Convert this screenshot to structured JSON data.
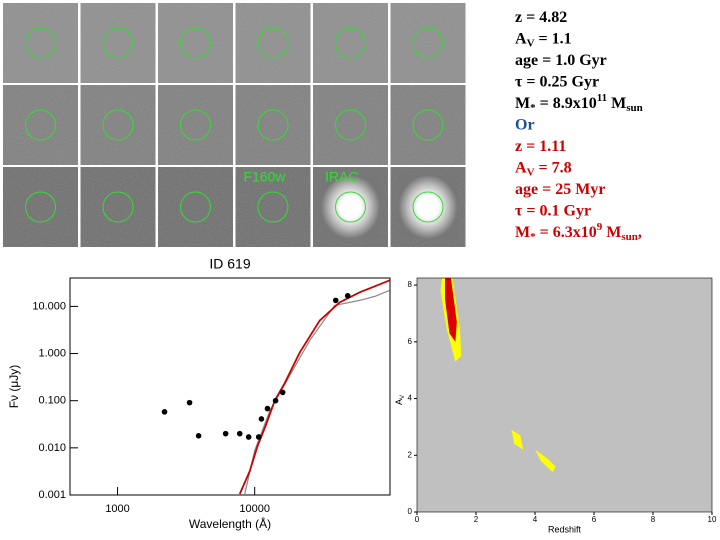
{
  "stamp_labels": [
    "F160w",
    "IRAC"
  ],
  "solutions": [
    {
      "color": "#000000",
      "lines": [
        [
          {
            "text": "z      = 4.82"
          }
        ],
        [
          {
            "text": "A"
          },
          {
            "sub": "V"
          },
          {
            "text": "  = 1.1"
          }
        ],
        [
          {
            "text": "age   = 1.0 Gyr"
          }
        ],
        [
          {
            "text": "τ       = 0.25 Gyr"
          }
        ],
        [
          {
            "text": "M"
          },
          {
            "sub": "*"
          },
          {
            "text": " = 8.9x10"
          },
          {
            "sup": "11"
          },
          {
            "text": " M"
          },
          {
            "sub": "sun"
          }
        ]
      ]
    },
    {
      "color": "#1f4e9c",
      "lines": [
        [
          {
            "text": "Or"
          }
        ]
      ]
    },
    {
      "color": "#cc0000",
      "lines": [
        [
          {
            "text": "z       = 1.11"
          }
        ],
        [
          {
            "text": "A"
          },
          {
            "sub": "V"
          },
          {
            "text": "   = 7.8"
          }
        ],
        [
          {
            "text": "age    = 25 Myr"
          }
        ],
        [
          {
            "text": "τ       = 0.1 Gyr"
          }
        ],
        [
          {
            "text": "M"
          },
          {
            "sub": "*"
          },
          {
            "text": " = 6.3x10"
          },
          {
            "sup": "9"
          },
          {
            "text": " M"
          },
          {
            "sub": "sun"
          },
          {
            "text": ","
          }
        ]
      ]
    }
  ],
  "chart_data": [
    {
      "type": "sed",
      "title": "ID 619",
      "xlabel": "Wavelength (Å)",
      "ylabel": "Fν (μJy)",
      "xscale": "log",
      "yscale": "log",
      "xlim": [
        450,
        97000
      ],
      "ylim": [
        0.001,
        40
      ],
      "xticks": [
        1000,
        10000
      ],
      "yticks": [
        {
          "value": 10,
          "label": "10.000"
        },
        {
          "value": 1,
          "label": "1.000"
        },
        {
          "value": 0.1,
          "label": "0.100"
        },
        {
          "value": 0.01,
          "label": "0.010"
        },
        {
          "value": 0.001,
          "label": "0.001"
        }
      ],
      "points": {
        "color": "#000000",
        "x": [
          2200,
          3350,
          3900,
          6140,
          7780,
          9040,
          10700,
          11200,
          12400,
          14200,
          16000,
          39000,
          47700
        ],
        "values": [
          0.058,
          0.091,
          0.018,
          0.02,
          0.02,
          0.017,
          0.017,
          0.041,
          0.068,
          0.1,
          0.15,
          13.4,
          16.8
        ]
      },
      "series": [
        {
          "color": "#888888",
          "x": [
            8460,
            10000,
            12900,
            18000,
            25200,
            38300,
            58300,
            75200,
            96600
          ],
          "values": [
            0.00105,
            0.0087,
            0.061,
            0.34,
            1.9,
            10.5,
            13.4,
            16.3,
            21.9
          ]
        },
        {
          "color": "#cc0000",
          "x": [
            7780,
            9200,
            10500,
            12000,
            14000,
            16600,
            21300,
            29800,
            41700,
            58300,
            96600
          ],
          "values": [
            0.00105,
            0.0032,
            0.011,
            0.029,
            0.1,
            0.24,
            1.05,
            5.0,
            12.2,
            19.9,
            35.7
          ]
        }
      ]
    },
    {
      "type": "contour",
      "xlabel": "Redshift",
      "ylabel": "A",
      "ylabel_sub": "V",
      "background": "#c0c0c0",
      "xlim": [
        0,
        10
      ],
      "ylim": [
        0,
        8.25
      ],
      "xticks": [
        0,
        2,
        4,
        6,
        8,
        10
      ],
      "yticks": [
        0,
        2,
        4,
        6,
        8
      ],
      "regions": [
        {
          "color": "#ffff00",
          "x": [
            0.85,
            1.2,
            1.45,
            1.5,
            1.3,
            1.0,
            0.8
          ],
          "values": [
            8.25,
            8.25,
            6.5,
            5.5,
            5.3,
            6.5,
            7.8
          ]
        },
        {
          "color": "#dd0000",
          "x": [
            0.95,
            1.15,
            1.35,
            1.3,
            1.1,
            0.95
          ],
          "values": [
            8.25,
            8.25,
            6.7,
            6.0,
            6.3,
            7.5
          ]
        },
        {
          "color": "#ffff00",
          "x": [
            3.2,
            3.5,
            3.6,
            3.3
          ],
          "values": [
            2.9,
            2.7,
            2.2,
            2.4
          ]
        },
        {
          "color": "#ffff00",
          "x": [
            4.0,
            4.4,
            4.7,
            4.6,
            4.2
          ],
          "values": [
            2.2,
            1.9,
            1.6,
            1.4,
            1.8
          ]
        }
      ]
    }
  ]
}
